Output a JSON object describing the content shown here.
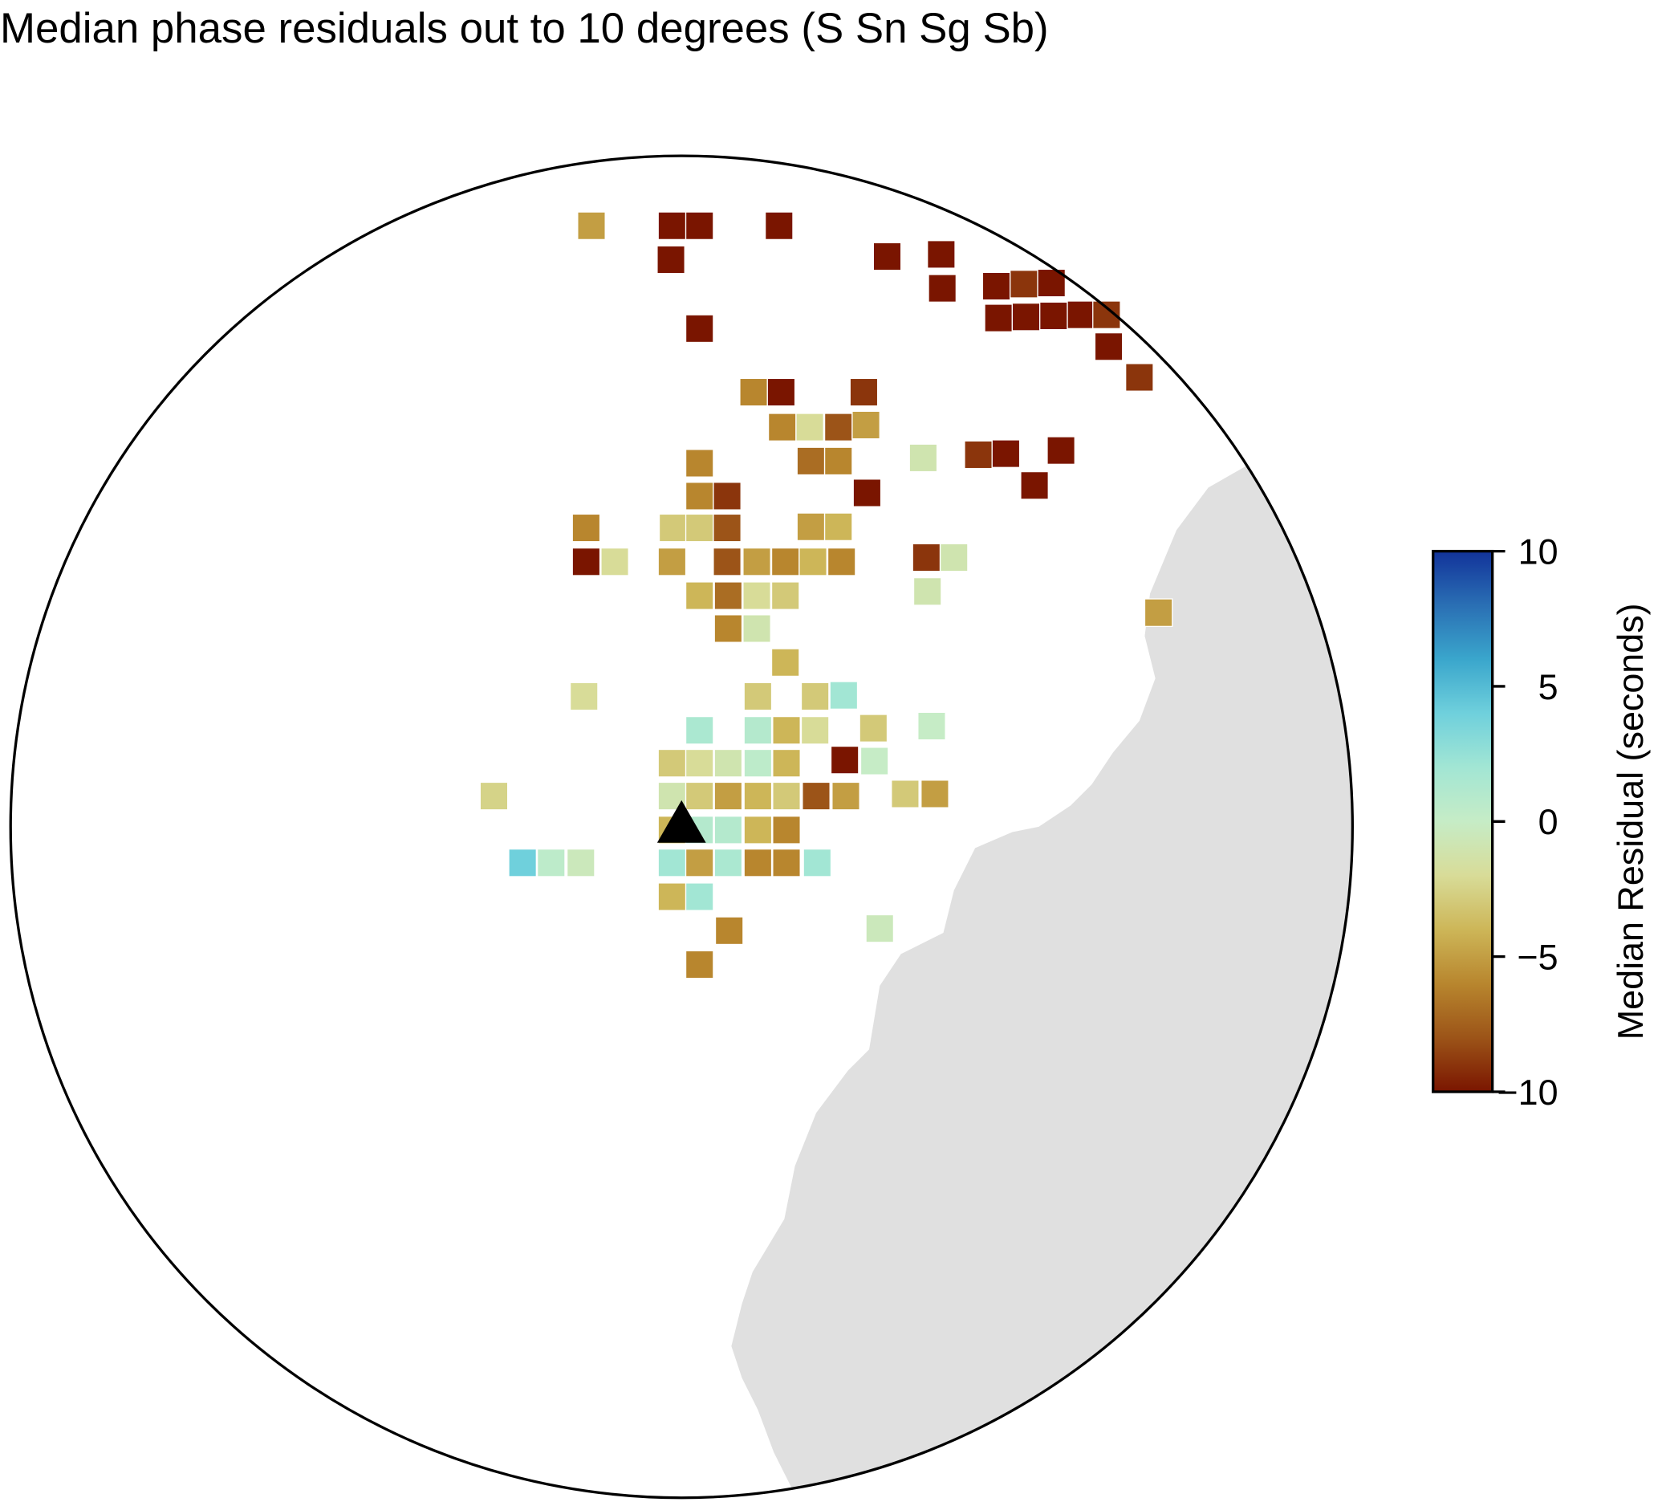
{
  "chart_data": {
    "type": "grid",
    "title": "Median phase residuals out to 10 degrees (S Sn Sg Sb)",
    "colorbar_label": "Median Residual (seconds)",
    "clim": [
      -10,
      10
    ],
    "cticks": [
      10,
      5,
      0,
      {
        "value": -5,
        "label": "−5"
      },
      {
        "value": -10,
        "label": "−10"
      }
    ],
    "values": [
      -5,
      -10,
      -10,
      -10,
      -10,
      -10,
      -10,
      -10,
      -10,
      -9,
      -10,
      -10,
      -10,
      -10,
      -10,
      -9,
      -10,
      -9,
      -10,
      -6,
      -10,
      -9,
      -6,
      -2,
      -8,
      -5,
      -1,
      -9,
      -10,
      -10,
      -10,
      -6,
      -7,
      -6,
      -10,
      -6,
      -9,
      -6,
      -3,
      -3,
      -8,
      -5,
      -4,
      -10,
      -2,
      -5,
      -8,
      -5,
      -6,
      -4,
      -6,
      -9,
      -1,
      -1,
      -4,
      -7,
      -2,
      -3,
      -6,
      -1,
      -4,
      -5,
      -2,
      -3,
      -3,
      2,
      1.5,
      1,
      -4,
      -2,
      -3,
      0,
      -3,
      -2,
      -1,
      0.5,
      -4,
      -10,
      0,
      -2.5,
      -1,
      -3,
      -5,
      -4,
      -3,
      -8,
      -5,
      -3,
      -5,
      -4,
      1,
      1,
      -4,
      -6,
      4,
      0.5,
      -0.5,
      2,
      -5,
      1.5,
      -6,
      -6,
      2,
      -4,
      2,
      -6,
      -0.5,
      -6
    ]
  }
}
